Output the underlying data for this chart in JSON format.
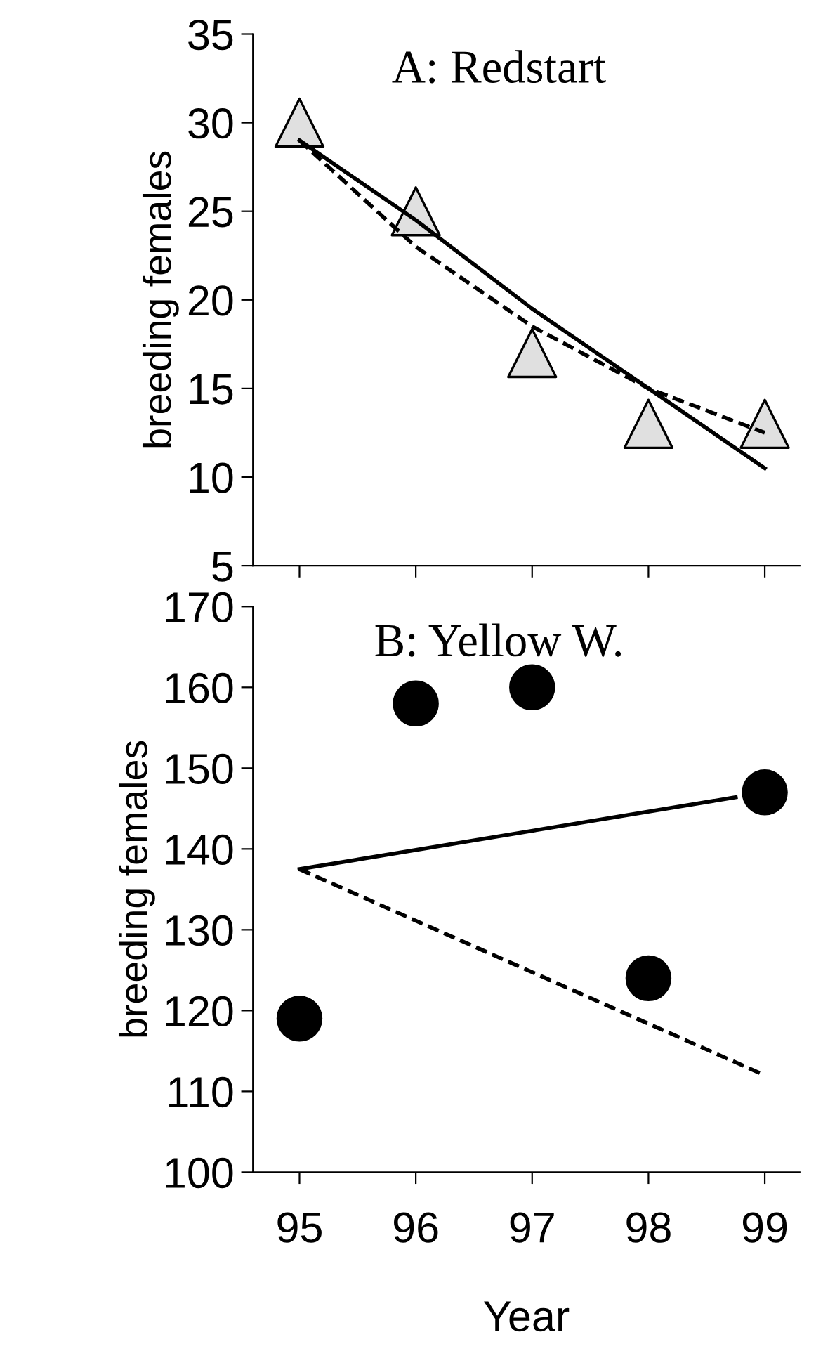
{
  "chart_data": [
    {
      "type": "scatter",
      "title": "A: Redstart",
      "ylabel": "breeding females",
      "x": [
        95,
        96,
        97,
        98,
        99
      ],
      "xlim": [
        94.6,
        99.3
      ],
      "xticks": [
        {
          "value": 95,
          "label": null
        },
        {
          "value": 96,
          "label": null
        },
        {
          "value": 97,
          "label": null
        },
        {
          "value": 98,
          "label": null
        },
        {
          "value": 99,
          "label": null
        }
      ],
      "ylim": [
        5,
        35
      ],
      "yticks": [
        5,
        10,
        15,
        20,
        25,
        30,
        35
      ],
      "tick_labels": "y",
      "grid": false,
      "series": [
        {
          "marker": "triangle",
          "color": "#e0e0e0",
          "values": [
            30,
            25,
            17,
            13,
            13
          ]
        },
        {
          "type": "line",
          "line_style": "solid",
          "marker": "none",
          "color": "#000000",
          "values": [
            29,
            24.5,
            19.5,
            15,
            10.5
          ]
        },
        {
          "type": "line",
          "line_style": "dashed",
          "marker": "none",
          "color": "#000000",
          "values": [
            29,
            23,
            18.5,
            15,
            12.5
          ]
        }
      ]
    },
    {
      "type": "scatter",
      "title": "B: Yellow W.",
      "ylabel": "breeding females",
      "xlabel": "Year",
      "x": [
        95,
        96,
        97,
        98,
        99
      ],
      "xlim": [
        94.6,
        99.3
      ],
      "xticks": [
        95,
        96,
        97,
        98,
        99
      ],
      "ylim": [
        100,
        170
      ],
      "yticks": [
        100,
        110,
        120,
        130,
        140,
        150,
        160,
        170
      ],
      "grid": false,
      "series": [
        {
          "marker": "circle",
          "color": "#000000",
          "values": [
            119,
            158,
            160,
            124,
            147
          ]
        },
        {
          "type": "line",
          "line_style": "solid",
          "marker": "none",
          "color": "#000000",
          "x": [
            95,
            98.75
          ],
          "values": [
            137.5,
            146.4
          ]
        },
        {
          "type": "line",
          "line_style": "dashed",
          "marker": "none",
          "color": "#000000",
          "x": [
            95,
            99
          ],
          "values": [
            137.5,
            112
          ]
        }
      ]
    }
  ]
}
